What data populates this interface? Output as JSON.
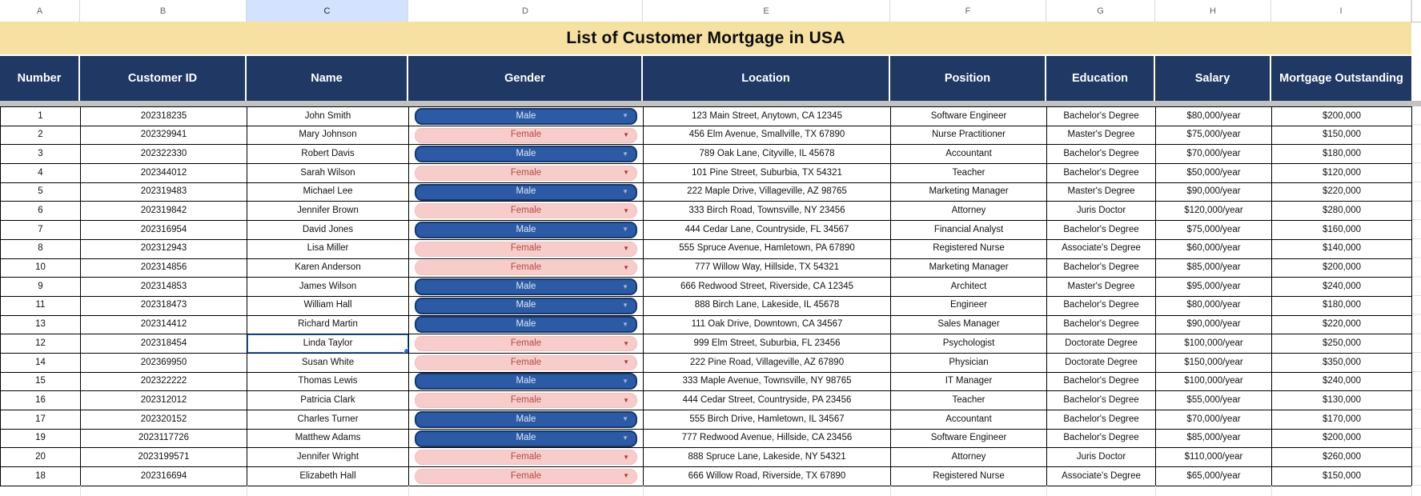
{
  "sheet": {
    "title": "List of Customer Mortgage in USA",
    "column_letters": [
      "A",
      "B",
      "C",
      "D",
      "E",
      "F",
      "G",
      "H",
      "I"
    ],
    "selected_column_letter": "C",
    "table": {
      "headers": [
        "Number",
        "Customer ID",
        "Name",
        "Gender",
        "Location",
        "Position",
        "Education",
        "Salary",
        "Mortgage Outstanding"
      ],
      "rows": [
        {
          "number": "1",
          "customer_id": "202318235",
          "name": "John Smith",
          "gender": "Male",
          "location": "123 Main Street, Anytown, CA 12345",
          "position": "Software Engineer",
          "education": "Bachelor's Degree",
          "salary": "$80,000/year",
          "mortgage_outstanding": "$200,000"
        },
        {
          "number": "2",
          "customer_id": "202329941",
          "name": "Mary Johnson",
          "gender": "Female",
          "location": "456 Elm Avenue, Smallville, TX 67890",
          "position": "Nurse Practitioner",
          "education": "Master's Degree",
          "salary": "$75,000/year",
          "mortgage_outstanding": "$150,000"
        },
        {
          "number": "3",
          "customer_id": "202322330",
          "name": "Robert Davis",
          "gender": "Male",
          "location": "789 Oak Lane, Cityville, IL 45678",
          "position": "Accountant",
          "education": "Bachelor's Degree",
          "salary": "$70,000/year",
          "mortgage_outstanding": "$180,000"
        },
        {
          "number": "4",
          "customer_id": "202344012",
          "name": "Sarah Wilson",
          "gender": "Female",
          "location": "101 Pine Street, Suburbia, TX 54321",
          "position": "Teacher",
          "education": "Bachelor's Degree",
          "salary": "$50,000/year",
          "mortgage_outstanding": "$120,000"
        },
        {
          "number": "5",
          "customer_id": "202319483",
          "name": "Michael Lee",
          "gender": "Male",
          "location": "222 Maple Drive, Villageville, AZ 98765",
          "position": "Marketing Manager",
          "education": "Master's Degree",
          "salary": "$90,000/year",
          "mortgage_outstanding": "$220,000"
        },
        {
          "number": "6",
          "customer_id": "202319842",
          "name": "Jennifer Brown",
          "gender": "Female",
          "location": "333 Birch Road, Townsville, NY 23456",
          "position": "Attorney",
          "education": "Juris Doctor",
          "salary": "$120,000/year",
          "mortgage_outstanding": "$280,000"
        },
        {
          "number": "7",
          "customer_id": "202316954",
          "name": "David Jones",
          "gender": "Male",
          "location": "444 Cedar Lane, Countryside, FL 34567",
          "position": "Financial Analyst",
          "education": "Bachelor's Degree",
          "salary": "$75,000/year",
          "mortgage_outstanding": "$160,000"
        },
        {
          "number": "8",
          "customer_id": "202312943",
          "name": "Lisa Miller",
          "gender": "Female",
          "location": "555 Spruce Avenue, Hamletown, PA 67890",
          "position": "Registered Nurse",
          "education": "Associate's Degree",
          "salary": "$60,000/year",
          "mortgage_outstanding": "$140,000"
        },
        {
          "number": "10",
          "customer_id": "202314856",
          "name": "Karen Anderson",
          "gender": "Female",
          "location": "777 Willow Way, Hillside, TX 54321",
          "position": "Marketing Manager",
          "education": "Bachelor's Degree",
          "salary": "$85,000/year",
          "mortgage_outstanding": "$200,000"
        },
        {
          "number": "9",
          "customer_id": "202314853",
          "name": "James Wilson",
          "gender": "Male",
          "location": "666 Redwood Street, Riverside, CA 12345",
          "position": "Architect",
          "education": "Master's Degree",
          "salary": "$95,000/year",
          "mortgage_outstanding": "$240,000"
        },
        {
          "number": "11",
          "customer_id": "202318473",
          "name": "William Hall",
          "gender": "Male",
          "location": "888 Birch Lane, Lakeside, IL 45678",
          "position": "Engineer",
          "education": "Bachelor's Degree",
          "salary": "$80,000/year",
          "mortgage_outstanding": "$180,000"
        },
        {
          "number": "13",
          "customer_id": "202314412",
          "name": "Richard Martin",
          "gender": "Male",
          "location": "111 Oak Drive, Downtown, CA 34567",
          "position": "Sales Manager",
          "education": "Bachelor's Degree",
          "salary": "$90,000/year",
          "mortgage_outstanding": "$220,000"
        },
        {
          "number": "12",
          "customer_id": "202318454",
          "name": "Linda Taylor",
          "gender": "Female",
          "location": "999 Elm Street, Suburbia, FL 23456",
          "position": "Psychologist",
          "education": "Doctorate Degree",
          "salary": "$100,000/year",
          "mortgage_outstanding": "$250,000"
        },
        {
          "number": "14",
          "customer_id": "202369950",
          "name": "Susan White",
          "gender": "Female",
          "location": "222 Pine Road, Villageville, AZ 67890",
          "position": "Physician",
          "education": "Doctorate Degree",
          "salary": "$150,000/year",
          "mortgage_outstanding": "$350,000"
        },
        {
          "number": "15",
          "customer_id": "202322222",
          "name": "Thomas Lewis",
          "gender": "Male",
          "location": "333 Maple Avenue, Townsville, NY 98765",
          "position": "IT Manager",
          "education": "Bachelor's Degree",
          "salary": "$100,000/year",
          "mortgage_outstanding": "$240,000"
        },
        {
          "number": "16",
          "customer_id": "202312012",
          "name": "Patricia Clark",
          "gender": "Female",
          "location": "444 Cedar Street, Countryside, PA 23456",
          "position": "Teacher",
          "education": "Bachelor's Degree",
          "salary": "$55,000/year",
          "mortgage_outstanding": "$130,000"
        },
        {
          "number": "17",
          "customer_id": "202320152",
          "name": "Charles Turner",
          "gender": "Male",
          "location": "555 Birch Drive, Hamletown, IL 34567",
          "position": "Accountant",
          "education": "Bachelor's Degree",
          "salary": "$70,000/year",
          "mortgage_outstanding": "$170,000"
        },
        {
          "number": "19",
          "customer_id": "2023117726",
          "name": "Matthew Adams",
          "gender": "Male",
          "location": "777 Redwood Avenue, Hillside, CA 23456",
          "position": "Software Engineer",
          "education": "Bachelor's Degree",
          "salary": "$85,000/year",
          "mortgage_outstanding": "$200,000"
        },
        {
          "number": "20",
          "customer_id": "2023199571",
          "name": "Jennifer Wright",
          "gender": "Female",
          "location": "888 Spruce Lane, Lakeside, NY 54321",
          "position": "Attorney",
          "education": "Juris Doctor",
          "salary": "$110,000/year",
          "mortgage_outstanding": "$260,000"
        },
        {
          "number": "18",
          "customer_id": "202316694",
          "name": "Elizabeth Hall",
          "gender": "Female",
          "location": "666 Willow Road, Riverside, TX 67890",
          "position": "Registered Nurse",
          "education": "Associate's Degree",
          "salary": "$65,000/year",
          "mortgage_outstanding": "$150,000"
        }
      ]
    },
    "selection": {
      "selected_row_index": 12,
      "selected_field": "name",
      "selected_value": "Linda Taylor"
    },
    "colors": {
      "title_bg": "#f6e1a2",
      "header_bg": "#1f3864",
      "header_text": "#ffffff",
      "male_pill_bg": "#2c5aa4",
      "male_pill_border": "#16386b",
      "male_pill_text": "#dde7f8",
      "male_arrow": "#9db9e4",
      "female_pill_bg": "#f6cdcb",
      "female_pill_text": "#b34a42",
      "female_arrow": "#b5382f",
      "selection_border": "#1a73e8",
      "selected_col_header_bg": "#d3e3fd"
    }
  }
}
